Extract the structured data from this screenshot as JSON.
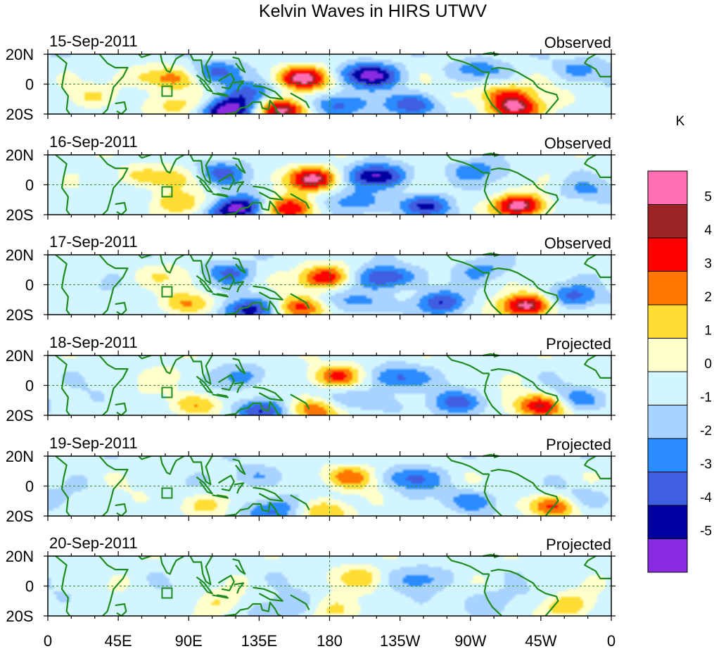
{
  "chart_data": {
    "type": "heatmap",
    "title": "Kelvin Waves in HIRS UTWV",
    "units": "K",
    "x_range": [
      0,
      360
    ],
    "y_range": [
      -20,
      20
    ],
    "x_ticks": [
      "0",
      "45E",
      "90E",
      "135E",
      "180",
      "135W",
      "90W",
      "45W",
      "0"
    ],
    "y_ticks": [
      "20N",
      "0",
      "20S"
    ],
    "colorbar": {
      "label": "K",
      "levels": [
        "5",
        "4",
        "3",
        "2",
        "1",
        "0",
        "-1",
        "-2",
        "-3",
        "-4",
        "-5"
      ],
      "colors": [
        "#ff6fb4",
        "#9b2323",
        "#ff0000",
        "#ff7700",
        "#ffdd33",
        "#ffffcc",
        "#d2f5ff",
        "#a8d2ff",
        "#2a8cff",
        "#3f5fe0",
        "#0000a0",
        "#8a2be2"
      ],
      "value_bins": [
        5.5,
        4.5,
        3.5,
        2.5,
        1.5,
        0.5,
        -0.5,
        -1.5,
        -2.5,
        -3.5,
        -4.5,
        -5.5
      ]
    },
    "panels": [
      {
        "date": "15-Sep-2011",
        "label": "Observed",
        "anomalies": [
          {
            "lon": 163,
            "lat": 4,
            "amp": 5.2
          },
          {
            "lon": 150,
            "lat": -17,
            "amp": 5.4
          },
          {
            "lon": 300,
            "lat": -16,
            "amp": 4.6
          },
          {
            "lon": 292,
            "lat": -6,
            "amp": 3.2
          },
          {
            "lon": 80,
            "lat": 4,
            "amp": 2.0
          },
          {
            "lon": 62,
            "lat": 4,
            "amp": 1.6
          },
          {
            "lon": 87,
            "lat": -14,
            "amp": 2.4
          },
          {
            "lon": 30,
            "lat": -8,
            "amp": 1.2
          },
          {
            "lon": 205,
            "lat": 6,
            "amp": -5.0
          },
          {
            "lon": 115,
            "lat": -17,
            "amp": -5.6
          },
          {
            "lon": 108,
            "lat": 8,
            "amp": -2.8
          },
          {
            "lon": 128,
            "lat": -6,
            "amp": -2.4
          },
          {
            "lon": 182,
            "lat": -14,
            "amp": -3.0
          },
          {
            "lon": 230,
            "lat": -14,
            "amp": -3.2
          },
          {
            "lon": 275,
            "lat": 10,
            "amp": -2.0
          },
          {
            "lon": 340,
            "lat": 10,
            "amp": -1.8
          }
        ]
      },
      {
        "date": "16-Sep-2011",
        "label": "Observed",
        "anomalies": [
          {
            "lon": 170,
            "lat": 4,
            "amp": 5.0
          },
          {
            "lon": 155,
            "lat": -16,
            "amp": 4.5
          },
          {
            "lon": 300,
            "lat": -14,
            "amp": 5.3
          },
          {
            "lon": 88,
            "lat": -13,
            "amp": 2.6
          },
          {
            "lon": 78,
            "lat": 5,
            "amp": 1.8
          },
          {
            "lon": 55,
            "lat": 6,
            "amp": 1.2
          },
          {
            "lon": 210,
            "lat": 6,
            "amp": -4.8
          },
          {
            "lon": 120,
            "lat": -16,
            "amp": -5.5
          },
          {
            "lon": 110,
            "lat": 8,
            "amp": -2.6
          },
          {
            "lon": 240,
            "lat": -14,
            "amp": -3.6
          },
          {
            "lon": 190,
            "lat": -12,
            "amp": -2.2
          },
          {
            "lon": 275,
            "lat": 10,
            "amp": -2.0
          },
          {
            "lon": 340,
            "lat": -4,
            "amp": -1.4
          }
        ]
      },
      {
        "date": "17-Sep-2011",
        "label": "Observed",
        "anomalies": [
          {
            "lon": 178,
            "lat": 5,
            "amp": 4.4
          },
          {
            "lon": 162,
            "lat": -16,
            "amp": 3.8
          },
          {
            "lon": 305,
            "lat": -14,
            "amp": 5.2
          },
          {
            "lon": 93,
            "lat": -13,
            "amp": 2.6
          },
          {
            "lon": 80,
            "lat": 6,
            "amp": 1.4
          },
          {
            "lon": 215,
            "lat": 5,
            "amp": -4.2
          },
          {
            "lon": 128,
            "lat": -17,
            "amp": -4.3
          },
          {
            "lon": 115,
            "lat": 8,
            "amp": -2.4
          },
          {
            "lon": 250,
            "lat": -12,
            "amp": -3.2
          },
          {
            "lon": 195,
            "lat": -12,
            "amp": -2.0
          },
          {
            "lon": 335,
            "lat": -8,
            "amp": -2.6
          },
          {
            "lon": 280,
            "lat": 10,
            "amp": -1.8
          }
        ]
      },
      {
        "date": "18-Sep-2011",
        "label": "Projected",
        "anomalies": [
          {
            "lon": 185,
            "lat": 6,
            "amp": 3.8
          },
          {
            "lon": 170,
            "lat": -17,
            "amp": 3.2
          },
          {
            "lon": 315,
            "lat": -14,
            "amp": 4.6
          },
          {
            "lon": 98,
            "lat": -13,
            "amp": 2.4
          },
          {
            "lon": 80,
            "lat": 6,
            "amp": 1.0
          },
          {
            "lon": 222,
            "lat": 5,
            "amp": -3.2
          },
          {
            "lon": 135,
            "lat": -17,
            "amp": -3.6
          },
          {
            "lon": 122,
            "lat": 6,
            "amp": -2.0
          },
          {
            "lon": 262,
            "lat": -12,
            "amp": -2.8
          },
          {
            "lon": 200,
            "lat": -10,
            "amp": -1.6
          },
          {
            "lon": 340,
            "lat": -10,
            "amp": -2.2
          }
        ]
      },
      {
        "date": "19-Sep-2011",
        "label": "Projected",
        "anomalies": [
          {
            "lon": 192,
            "lat": 6,
            "amp": 2.8
          },
          {
            "lon": 178,
            "lat": -17,
            "amp": 2.2
          },
          {
            "lon": 322,
            "lat": -13,
            "amp": 3.6
          },
          {
            "lon": 103,
            "lat": -12,
            "amp": 1.8
          },
          {
            "lon": 232,
            "lat": 5,
            "amp": -2.6
          },
          {
            "lon": 142,
            "lat": -16,
            "amp": -2.6
          },
          {
            "lon": 130,
            "lat": 6,
            "amp": -1.6
          },
          {
            "lon": 272,
            "lat": -10,
            "amp": -2.2
          },
          {
            "lon": 345,
            "lat": -8,
            "amp": -1.6
          }
        ]
      },
      {
        "date": "20-Sep-2011",
        "label": "Projected",
        "anomalies": [
          {
            "lon": 198,
            "lat": 6,
            "amp": 1.8
          },
          {
            "lon": 185,
            "lat": -16,
            "amp": 1.6
          },
          {
            "lon": 330,
            "lat": -13,
            "amp": 2.2
          },
          {
            "lon": 108,
            "lat": -12,
            "amp": 1.2
          },
          {
            "lon": 240,
            "lat": 5,
            "amp": -1.8
          },
          {
            "lon": 150,
            "lat": -15,
            "amp": -1.6
          },
          {
            "lon": 282,
            "lat": -10,
            "amp": -1.4
          }
        ]
      }
    ]
  },
  "colors": {
    "coastline": "#1e8c1e",
    "equator_line": "#2e8b2e",
    "frame": "#000000"
  }
}
